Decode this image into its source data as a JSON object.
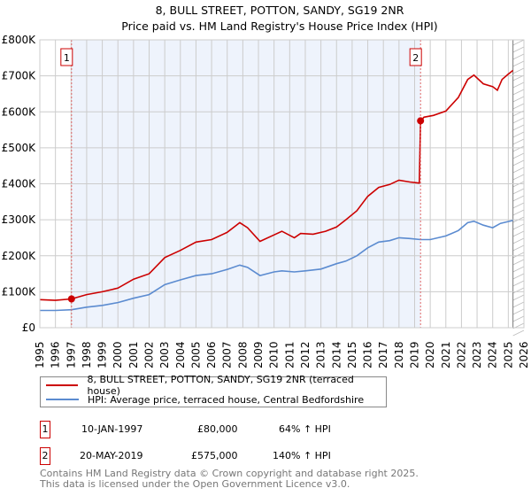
{
  "chart_data": {
    "type": "line",
    "title": "8, BULL STREET, POTTON, SANDY, SG19 2NR",
    "subtitle": "Price paid vs. HM Land Registry's House Price Index (HPI)",
    "xlabel": "",
    "ylabel": "",
    "xlim": [
      1995,
      2026
    ],
    "ylim": [
      0,
      800000
    ],
    "y_ticks": [
      {
        "v": 0,
        "label": "£0"
      },
      {
        "v": 100000,
        "label": "£100K"
      },
      {
        "v": 200000,
        "label": "£200K"
      },
      {
        "v": 300000,
        "label": "£300K"
      },
      {
        "v": 400000,
        "label": "£400K"
      },
      {
        "v": 500000,
        "label": "£500K"
      },
      {
        "v": 600000,
        "label": "£600K"
      },
      {
        "v": 700000,
        "label": "£700K"
      },
      {
        "v": 800000,
        "label": "£800K"
      }
    ],
    "x_ticks": [
      "1995",
      "1996",
      "1997",
      "1998",
      "1999",
      "2000",
      "2001",
      "2002",
      "2003",
      "2004",
      "2005",
      "2006",
      "2007",
      "2008",
      "2009",
      "2010",
      "2011",
      "2012",
      "2013",
      "2014",
      "2015",
      "2016",
      "2017",
      "2018",
      "2019",
      "2020",
      "2021",
      "2022",
      "2023",
      "2024",
      "2025",
      "2026"
    ],
    "grid": true,
    "shaded_range": [
      1997.03,
      2019.38
    ],
    "hatched_from": 2025.3,
    "series": [
      {
        "name": "8, BULL STREET, POTTON, SANDY, SG19 2NR (terraced house)",
        "color": "#cc0000",
        "x": [
          1995,
          1996,
          1997.03,
          1998,
          1999,
          2000,
          2001,
          2002,
          2003,
          2004,
          2005,
          2006,
          2007,
          2007.8,
          2008.3,
          2009.1,
          2010,
          2010.5,
          2011.3,
          2011.7,
          2012.5,
          2013.3,
          2014,
          2014.6,
          2015.3,
          2016,
          2016.7,
          2017.4,
          2018,
          2018.7,
          2019.3,
          2019.38,
          2019.6,
          2020.2,
          2021,
          2021.8,
          2022.4,
          2022.8,
          2023.4,
          2024,
          2024.3,
          2024.6,
          2025,
          2025.3
        ],
        "y": [
          78000,
          76000,
          80000,
          92000,
          100000,
          110000,
          135000,
          150000,
          195000,
          215000,
          238000,
          245000,
          265000,
          292000,
          278000,
          240000,
          258000,
          268000,
          250000,
          262000,
          260000,
          268000,
          280000,
          300000,
          325000,
          365000,
          390000,
          398000,
          410000,
          405000,
          402000,
          575000,
          585000,
          590000,
          602000,
          640000,
          690000,
          702000,
          678000,
          670000,
          660000,
          690000,
          705000,
          715000
        ]
      },
      {
        "name": "HPI: Average price, terraced house, Central Bedfordshire",
        "color": "#5b8bd0",
        "x": [
          1995,
          1996,
          1997.03,
          1998,
          1999,
          2000,
          2001,
          2002,
          2003,
          2004,
          2005,
          2006,
          2007,
          2007.8,
          2008.3,
          2009.1,
          2010,
          2010.5,
          2011.3,
          2012,
          2013,
          2014,
          2014.6,
          2015.3,
          2016,
          2016.7,
          2017.4,
          2018,
          2018.7,
          2019.38,
          2020,
          2021,
          2021.8,
          2022.4,
          2022.8,
          2023.4,
          2024,
          2024.5,
          2025.3
        ],
        "y": [
          48000,
          48000,
          50000,
          57000,
          62000,
          70000,
          82000,
          92000,
          120000,
          133000,
          145000,
          150000,
          162000,
          174000,
          168000,
          145000,
          155000,
          158000,
          155000,
          158000,
          163000,
          178000,
          185000,
          200000,
          222000,
          238000,
          242000,
          250000,
          248000,
          245000,
          245000,
          255000,
          270000,
          292000,
          296000,
          285000,
          278000,
          290000,
          298000
        ]
      }
    ],
    "markers": [
      {
        "label": "1",
        "x": 1997.03,
        "y": 80000
      },
      {
        "label": "2",
        "x": 2019.38,
        "y": 575000
      }
    ],
    "legend_position": "below"
  },
  "transactions": [
    {
      "num": "1",
      "date": "10-JAN-1997",
      "price": "£80,000",
      "hpi": "64% ↑ HPI"
    },
    {
      "num": "2",
      "date": "20-MAY-2019",
      "price": "£575,000",
      "hpi": "140% ↑ HPI"
    }
  ],
  "footer": {
    "line1": "Contains HM Land Registry data © Crown copyright and database right 2025.",
    "line2": "This data is licensed under the Open Government Licence v3.0."
  },
  "colors": {
    "property": "#cc0000",
    "hpi": "#5b8bd0",
    "shade": "#eef3fc"
  }
}
